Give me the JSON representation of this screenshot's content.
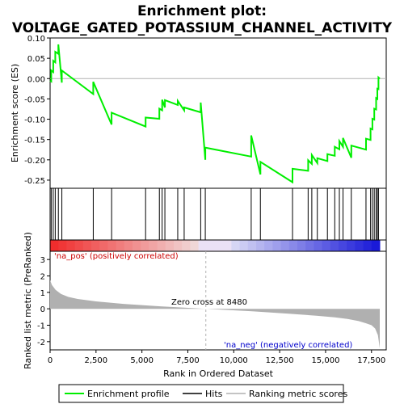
{
  "title_line1": "Enrichment plot:",
  "title_line2": "VOLTAGE_GATED_POTASSIUM_CHANNEL_ACTIVITY",
  "colors": {
    "enrichment": "#00ee00",
    "hits": "#000000",
    "metric_fill": "#b0b0b0",
    "pos_label": "#cc0000",
    "neg_label": "#0000cc",
    "zero_line": "#b0b0b0"
  },
  "legend": {
    "enrichment_label": "Enrichment profile",
    "hits_label": "Hits",
    "ranking_label": "Ranking metric scores"
  },
  "annotations": {
    "pos": "'na_pos' (positively correlated)",
    "neg": "'na_neg' (negatively correlated)",
    "zero_cross": "Zero cross at 8480"
  },
  "chart_data": {
    "type": "line",
    "xlabel": "Rank in Ordered Dataset",
    "n_genes": 17950,
    "zero_cross": 8480,
    "es_panel": {
      "ylabel": "Enrichment score (ES)",
      "ylim": [
        -0.27,
        0.1
      ],
      "yticks": [
        0.1,
        0.05,
        0.0,
        -0.05,
        -0.1,
        -0.15,
        -0.2,
        -0.25
      ],
      "ytick_labels": [
        "0.10",
        "0.05",
        "0.00",
        "-0.05",
        "-0.10",
        "-0.15",
        "-0.20",
        "-0.25"
      ]
    },
    "metric_panel": {
      "ylabel": "Ranked list metric (PreRanked)",
      "ylim": [
        -2.5,
        3.5
      ],
      "yticks": [
        3,
        2,
        1,
        0,
        -1,
        -2
      ],
      "ytick_labels": [
        "3",
        "2",
        "1",
        "0",
        "-1",
        "-2"
      ]
    },
    "xticks": [
      0,
      2500,
      5000,
      7500,
      10000,
      12500,
      15000,
      17500
    ],
    "xtick_labels": [
      "0",
      "2,500",
      "5,000",
      "7,500",
      "10,000",
      "12,500",
      "15,000",
      "17,500"
    ],
    "hits": [
      60,
      170,
      280,
      450,
      640,
      2350,
      3350,
      5200,
      5950,
      6100,
      6250,
      6950,
      7300,
      8200,
      8450,
      10950,
      11450,
      13200,
      14050,
      14250,
      14550,
      15100,
      15500,
      15750,
      15950,
      16400,
      17200,
      17450,
      17550,
      17650,
      17750,
      17820,
      17880
    ],
    "es_profile": {
      "x": [
        0,
        60,
        60,
        170,
        170,
        280,
        280,
        450,
        450,
        640,
        640,
        2350,
        2350,
        3350,
        3350,
        5200,
        5200,
        5950,
        5950,
        6100,
        6100,
        6250,
        6250,
        6950,
        6950,
        7300,
        7300,
        8200,
        8200,
        8450,
        8450,
        10950,
        10950,
        11450,
        11450,
        13200,
        13200,
        14050,
        14050,
        14250,
        14250,
        14550,
        14550,
        15100,
        15100,
        15500,
        15500,
        15750,
        15750,
        15950,
        15950,
        16400,
        16400,
        17200,
        17200,
        17450,
        17450,
        17550,
        17550,
        17650,
        17650,
        17750,
        17750,
        17820,
        17820,
        17880,
        17880,
        17950
      ],
      "y": [
        -0.005,
        -0.007,
        0.02,
        0.016,
        0.044,
        0.04,
        0.066,
        0.061,
        0.084,
        -0.01,
        0.02,
        -0.038,
        -0.008,
        -0.113,
        -0.084,
        -0.118,
        -0.096,
        -0.099,
        -0.074,
        -0.078,
        -0.052,
        -0.071,
        -0.053,
        -0.065,
        -0.055,
        -0.078,
        -0.071,
        -0.083,
        -0.059,
        -0.2,
        -0.17,
        -0.192,
        -0.14,
        -0.236,
        -0.205,
        -0.255,
        -0.222,
        -0.227,
        -0.201,
        -0.21,
        -0.188,
        -0.208,
        -0.196,
        -0.203,
        -0.186,
        -0.19,
        -0.168,
        -0.174,
        -0.154,
        -0.168,
        -0.146,
        -0.195,
        -0.165,
        -0.175,
        -0.148,
        -0.151,
        -0.123,
        -0.125,
        -0.099,
        -0.101,
        -0.074,
        -0.076,
        -0.048,
        -0.05,
        -0.025,
        -0.026,
        0.003,
        0.0
      ]
    },
    "metric_curve": {
      "x": [
        0,
        100,
        300,
        600,
        1000,
        1500,
        2500,
        4000,
        6000,
        8480,
        11000,
        13000,
        14500,
        15500,
        16200,
        16800,
        17200,
        17500,
        17700,
        17850,
        17950
      ],
      "y": [
        1.75,
        1.45,
        1.15,
        0.9,
        0.72,
        0.6,
        0.45,
        0.3,
        0.15,
        0.0,
        -0.15,
        -0.3,
        -0.42,
        -0.52,
        -0.62,
        -0.75,
        -0.88,
        -1.0,
        -1.2,
        -1.6,
        -2.4
      ]
    }
  }
}
